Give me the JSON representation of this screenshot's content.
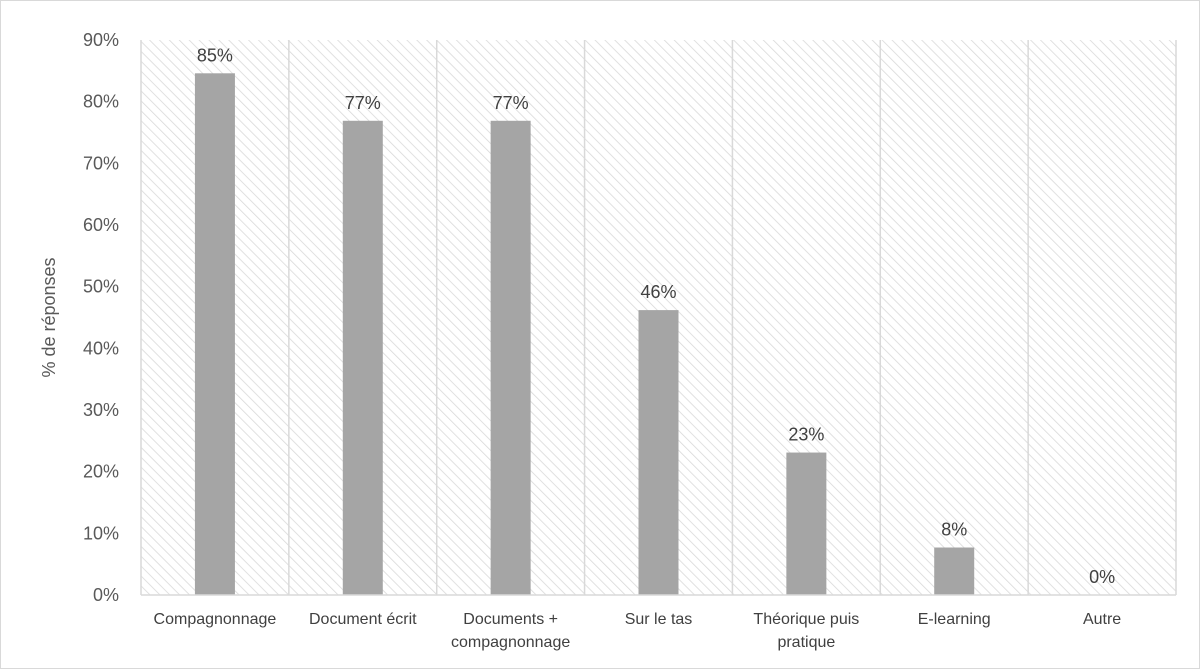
{
  "chart_data": {
    "type": "bar",
    "title": "",
    "xlabel": "",
    "ylabel": "% de réponses",
    "ylim": [
      0,
      90
    ],
    "y_tick_step": 10,
    "y_tick_suffix": "%",
    "grid": true,
    "categories": [
      "Compagnonnage",
      "Document écrit",
      "Documents + compagnonnage",
      "Sur le tas",
      "Théorique puis pratique",
      "E-learning",
      "Autre"
    ],
    "category_lines": [
      [
        "Compagnonnage"
      ],
      [
        "Document écrit"
      ],
      [
        "Documents +",
        "compagnonnage"
      ],
      [
        "Sur le tas"
      ],
      [
        "Théorique puis",
        "pratique"
      ],
      [
        "E-learning"
      ],
      [
        "Autre"
      ]
    ],
    "values": [
      84.6,
      76.9,
      76.9,
      46.2,
      23.1,
      7.7,
      0
    ],
    "data_labels": [
      "85%",
      "77%",
      "77%",
      "46%",
      "23%",
      "8%",
      "0%"
    ],
    "colors": {
      "bar": "#a5a5a5",
      "hatch": "#d9d9d9",
      "grid": "#d9d9d9",
      "axis": "#d9d9d9"
    }
  }
}
